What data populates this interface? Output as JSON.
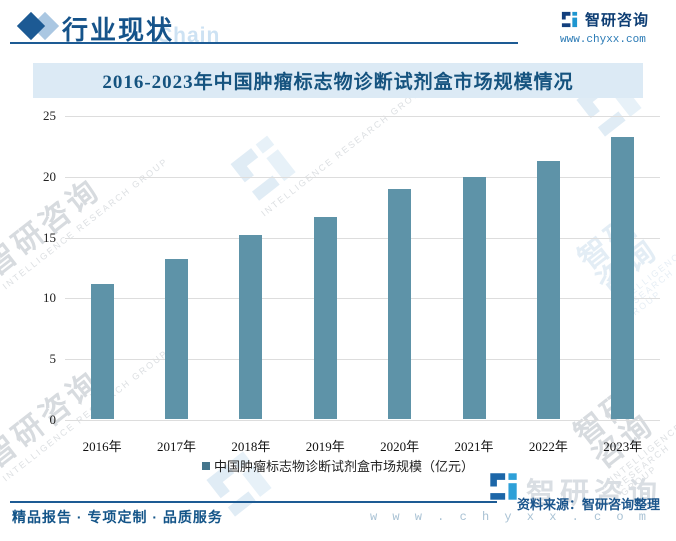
{
  "header": {
    "section_title": "行业现状",
    "watermark_text": "Chain",
    "brand_name": "智研咨询",
    "brand_website": "www.chyxx.com"
  },
  "chart_data": {
    "type": "bar",
    "title": "2016-2023年中国肿瘤标志物诊断试剂盒市场规模情况",
    "categories": [
      "2016年",
      "2017年",
      "2018年",
      "2019年",
      "2020年",
      "2021年",
      "2022年",
      "2023年"
    ],
    "values": [
      11.2,
      13.2,
      15.2,
      16.7,
      19.0,
      20.0,
      21.3,
      23.3
    ],
    "ylim": [
      0,
      25
    ],
    "ytick_step": 5,
    "xlabel": "",
    "ylabel": "",
    "grid": "horizontal",
    "legend": [
      "中国肿瘤标志物诊断试剂盒市场规模（亿元）"
    ],
    "legend_position": "bottom",
    "bar_color": "#5e93a8"
  },
  "watermark": {
    "brand_cn": "智研咨询",
    "brand_en": "INTELLIGENCE RESEARCH GROUP"
  },
  "footer": {
    "tagline": "精品报告 · 专项定制 · 品质服务",
    "source": "资料来源：智研咨询整理",
    "website": "w w w . c h y x x . c o m",
    "brand": "智研咨询"
  },
  "colors": {
    "accent_blue": "#15538a",
    "bar": "#5e93a8",
    "title_band_bg": "#dceaf5",
    "gridline": "#dddddd"
  }
}
